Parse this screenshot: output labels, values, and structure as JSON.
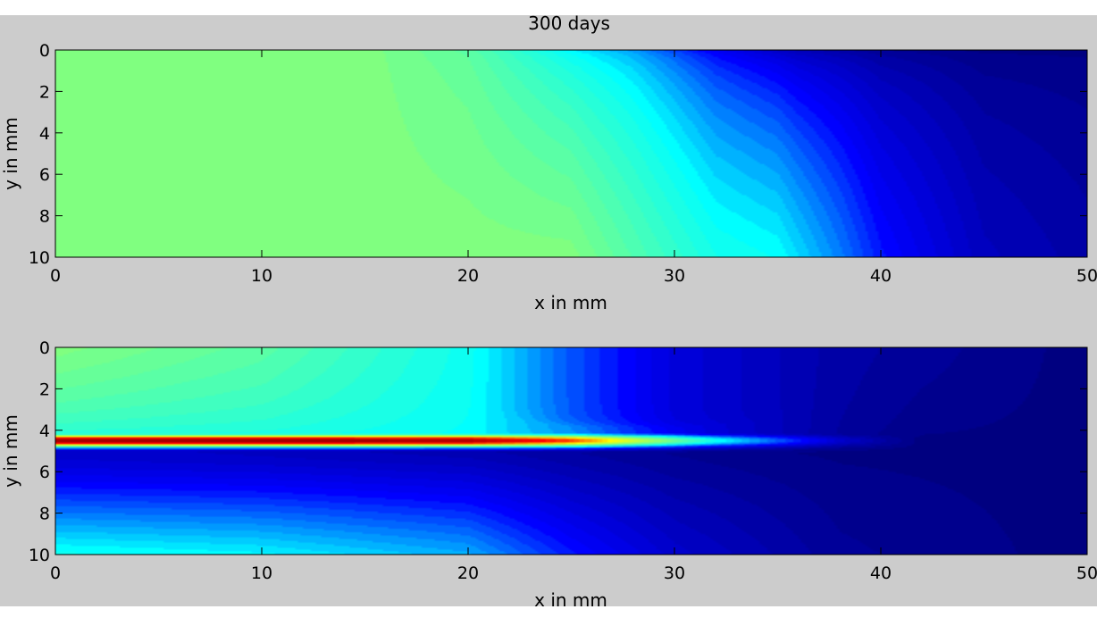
{
  "figure": {
    "background": "#cccccc",
    "colormap": "jet",
    "colormap_stops": [
      "#000080",
      "#0000ff",
      "#00ffff",
      "#80ff80",
      "#ffff00",
      "#ff0000",
      "#800000"
    ]
  },
  "chart_data": [
    {
      "type": "heatmap",
      "title": "300 days",
      "xlabel": "x in mm",
      "ylabel": "y in mm",
      "xlim": [
        0,
        50
      ],
      "ylim": [
        0,
        10
      ],
      "y_reversed": true,
      "xticks": [
        "0",
        "10",
        "20",
        "30",
        "40",
        "50"
      ],
      "yticks": [
        "0",
        "2",
        "4",
        "6",
        "8",
        "10"
      ],
      "field_samples": {
        "x": [
          0,
          10,
          15,
          20,
          25,
          28,
          30,
          32,
          35,
          36,
          38,
          40,
          45,
          50
        ],
        "y0": [
          0.5,
          0.5,
          0.5,
          0.45,
          0.32,
          0.26,
          0.2,
          0.14,
          0.08,
          0.06,
          0.04,
          0.02,
          0.0,
          0.0
        ],
        "y10": [
          0.5,
          0.5,
          0.5,
          0.5,
          0.5,
          0.44,
          0.4,
          0.36,
          0.34,
          0.31,
          0.25,
          0.18,
          0.08,
          0.05
        ]
      }
    },
    {
      "type": "heatmap",
      "title": "",
      "xlabel": "x in mm",
      "ylabel": "y in mm",
      "xlim": [
        0,
        50
      ],
      "ylim": [
        0,
        10
      ],
      "y_reversed": true,
      "xticks": [
        "0",
        "10",
        "20",
        "30",
        "40",
        "50"
      ],
      "yticks": [
        "0",
        "2",
        "4",
        "6",
        "8",
        "10"
      ],
      "field_samples": {
        "band_center_y": 4.5,
        "band_peak": [
          0.97,
          0.97,
          0.95,
          0.8,
          0.6,
          0.35,
          0.1,
          0.0
        ],
        "band_x": [
          0,
          10,
          20,
          25,
          28,
          32,
          38,
          42
        ],
        "top_edge": [
          0.5,
          0.45,
          0.35,
          0.22,
          0.12,
          0.05,
          0.0
        ],
        "bottom_edge": [
          0.35,
          0.33,
          0.28,
          0.18,
          0.1,
          0.03,
          0.0
        ],
        "edge_x": [
          0,
          10,
          20,
          25,
          30,
          38,
          50
        ]
      }
    }
  ]
}
